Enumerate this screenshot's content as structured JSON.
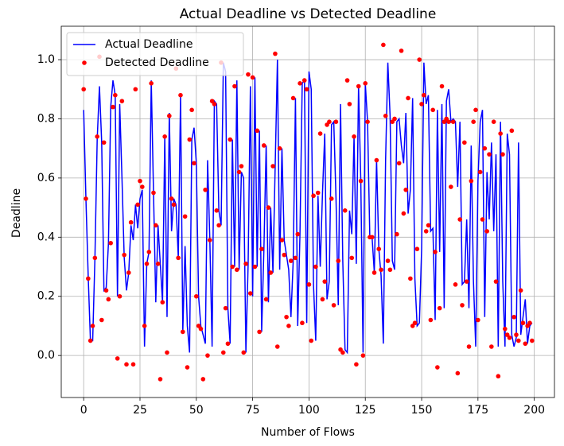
{
  "chart_data": {
    "type": "line-scatter",
    "title": "Actual Deadline vs Detected Deadline",
    "xlabel": "Number of Flows",
    "ylabel": "Deadline",
    "x": [
      0,
      1,
      2,
      3,
      4,
      5,
      6,
      7,
      8,
      9,
      10,
      11,
      12,
      13,
      14,
      15,
      16,
      17,
      18,
      19,
      20,
      21,
      22,
      23,
      24,
      25,
      26,
      27,
      28,
      29,
      30,
      31,
      32,
      33,
      34,
      35,
      36,
      37,
      38,
      39,
      40,
      41,
      42,
      43,
      44,
      45,
      46,
      47,
      48,
      49,
      50,
      51,
      52,
      53,
      54,
      55,
      56,
      57,
      58,
      59,
      60,
      61,
      62,
      63,
      64,
      65,
      66,
      67,
      68,
      69,
      70,
      71,
      72,
      73,
      74,
      75,
      76,
      77,
      78,
      79,
      80,
      81,
      82,
      83,
      84,
      85,
      86,
      87,
      88,
      89,
      90,
      91,
      92,
      93,
      94,
      95,
      96,
      97,
      98,
      99,
      100,
      101,
      102,
      103,
      104,
      105,
      106,
      107,
      108,
      109,
      110,
      111,
      112,
      113,
      114,
      115,
      116,
      117,
      118,
      119,
      120,
      121,
      122,
      123,
      124,
      125,
      126,
      127,
      128,
      129,
      130,
      131,
      132,
      133,
      134,
      135,
      136,
      137,
      138,
      139,
      140,
      141,
      142,
      143,
      144,
      145,
      146,
      147,
      148,
      149,
      150,
      151,
      152,
      153,
      154,
      155,
      156,
      157,
      158,
      159,
      160,
      161,
      162,
      163,
      164,
      165,
      166,
      167,
      168,
      169,
      170,
      171,
      172,
      173,
      174,
      175,
      176,
      177,
      178,
      179,
      180,
      181,
      182,
      183,
      184,
      185,
      186,
      187,
      188,
      189,
      190,
      191,
      192,
      193,
      194,
      195,
      196,
      197,
      198,
      199
    ],
    "series": [
      {
        "name": "Actual Deadline",
        "color": "#0000ff",
        "mark": "line",
        "values": [
          0.83,
          0.53,
          0.27,
          0.05,
          0.05,
          0.33,
          0.73,
          0.91,
          0.72,
          0.22,
          0.23,
          0.38,
          0.84,
          0.93,
          0.88,
          0.2,
          0.85,
          0.6,
          0.33,
          0.22,
          0.28,
          0.44,
          0.39,
          0.51,
          0.43,
          0.53,
          0.56,
          0.03,
          0.31,
          0.35,
          0.93,
          0.55,
          0.18,
          0.44,
          0.31,
          0.18,
          0.74,
          0.13,
          0.82,
          0.42,
          0.53,
          0.51,
          0.33,
          0.88,
          0.08,
          0.37,
          0.1,
          0.01,
          0.73,
          0.77,
          0.65,
          0.2,
          0.1,
          0.07,
          0.04,
          0.66,
          0.39,
          0.03,
          0.86,
          0.85,
          0.49,
          0.44,
          0.99,
          0.96,
          0.16,
          0.04,
          0.73,
          0.3,
          0.93,
          0.29,
          0.62,
          0.6,
          0.01,
          0.31,
          0.91,
          0.2,
          0.94,
          0.3,
          0.76,
          0.08,
          0.36,
          0.71,
          0.18,
          0.5,
          0.28,
          0.64,
          1.0,
          0.29,
          0.7,
          0.39,
          0.34,
          0.29,
          0.13,
          0.32,
          0.87,
          0.1,
          0.41,
          0.92,
          0.93,
          0.11,
          0.96,
          0.9,
          0.24,
          0.05,
          0.54,
          0.3,
          0.55,
          0.75,
          0.19,
          0.25,
          0.78,
          0.79,
          0.53,
          0.17,
          0.85,
          0.32,
          0.02,
          0.01,
          0.49,
          0.41,
          0.74,
          0.31,
          0.91,
          0.59,
          0.01,
          0.92,
          0.79,
          0.4,
          0.4,
          0.28,
          0.66,
          0.36,
          0.27,
          0.04,
          0.66,
          0.99,
          0.81,
          0.32,
          0.29,
          0.79,
          0.8,
          0.71,
          0.65,
          0.82,
          0.48,
          0.56,
          0.87,
          0.26,
          0.1,
          0.11,
          0.36,
          0.99,
          0.85,
          0.88,
          0.42,
          0.43,
          0.12,
          0.83,
          0.35,
          0.85,
          0.16,
          0.86,
          0.9,
          0.79,
          0.8,
          0.79,
          0.57,
          0.79,
          0.24,
          0.25,
          0.46,
          0.16,
          0.71,
          0.25,
          0.03,
          0.59,
          0.79,
          0.83,
          0.13,
          0.62,
          0.46,
          0.72,
          0.42,
          0.68,
          0.03,
          0.79,
          0.25,
          0.03,
          0.75,
          0.68,
          0.07,
          0.03,
          0.06,
          0.72,
          0.07,
          0.13,
          0.19,
          0.04,
          0.1,
          0.11
        ]
      },
      {
        "name": "Detected Deadline",
        "color": "#ff0000",
        "mark": "scatter",
        "values": [
          0.9,
          0.53,
          0.26,
          0.05,
          0.1,
          0.33,
          0.74,
          1.01,
          0.12,
          0.72,
          0.22,
          0.19,
          0.38,
          0.84,
          0.88,
          -0.01,
          0.2,
          0.86,
          0.34,
          -0.03,
          0.28,
          0.45,
          -0.03,
          0.9,
          0.51,
          0.59,
          0.57,
          0.1,
          0.31,
          0.35,
          0.92,
          0.55,
          0.44,
          0.31,
          -0.08,
          0.18,
          0.74,
          0.01,
          0.81,
          0.53,
          0.51,
          0.97,
          0.33,
          0.88,
          0.08,
          0.47,
          -0.04,
          0.73,
          0.83,
          0.65,
          0.2,
          0.1,
          0.09,
          -0.08,
          0.56,
          0.0,
          0.39,
          0.86,
          0.85,
          0.49,
          0.44,
          0.99,
          0.01,
          0.16,
          0.04,
          0.73,
          0.3,
          0.91,
          0.29,
          0.62,
          0.64,
          0.01,
          0.31,
          0.95,
          0.21,
          0.94,
          0.3,
          0.76,
          0.08,
          0.36,
          0.71,
          0.19,
          0.5,
          0.28,
          0.64,
          1.02,
          0.03,
          0.7,
          0.39,
          0.34,
          0.13,
          0.1,
          0.32,
          0.87,
          0.33,
          0.41,
          0.92,
          0.11,
          0.93,
          0.9,
          0.24,
          0.05,
          0.54,
          0.3,
          0.55,
          0.75,
          0.19,
          0.25,
          0.78,
          0.79,
          0.53,
          0.17,
          0.79,
          0.32,
          0.02,
          0.01,
          0.49,
          0.93,
          0.85,
          0.33,
          0.74,
          -0.03,
          0.91,
          0.59,
          0.0,
          0.92,
          0.79,
          0.4,
          0.4,
          0.28,
          0.66,
          0.36,
          0.29,
          1.05,
          0.81,
          0.32,
          0.29,
          0.79,
          0.8,
          0.41,
          0.65,
          1.03,
          0.48,
          0.56,
          0.87,
          0.26,
          0.1,
          0.11,
          0.36,
          1.0,
          0.85,
          0.88,
          0.42,
          0.44,
          0.12,
          0.83,
          0.35,
          -0.04,
          0.16,
          0.91,
          0.79,
          0.8,
          0.79,
          0.57,
          0.79,
          0.24,
          -0.06,
          0.46,
          0.17,
          0.72,
          0.25,
          0.03,
          0.59,
          0.79,
          0.83,
          0.12,
          0.62,
          0.46,
          0.7,
          0.42,
          0.68,
          0.03,
          0.79,
          0.25,
          -0.07,
          0.75,
          0.68,
          0.09,
          0.07,
          0.06,
          0.76,
          0.13,
          0.07,
          0.05,
          0.22,
          0.11,
          0.04,
          0.1,
          0.11,
          0.05
        ]
      }
    ],
    "xlim": [
      -9.95,
      208.95
    ],
    "xticks": [
      0,
      25,
      50,
      75,
      100,
      125,
      150,
      175,
      200
    ],
    "ylim": [
      -0.142,
      1.113
    ],
    "yticks": [
      {
        "value": 0,
        "label": "0.0"
      },
      0.2,
      0.4,
      0.6,
      0.8,
      {
        "value": 1,
        "label": "1.0"
      }
    ],
    "grid": true,
    "legend": "upper-left"
  }
}
